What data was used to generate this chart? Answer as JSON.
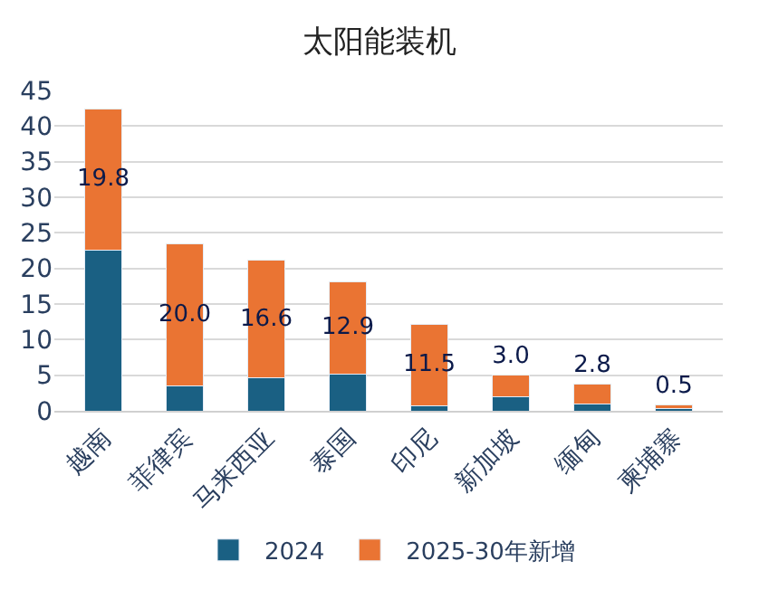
{
  "chart_data": {
    "type": "bar",
    "title": "太阳能装机",
    "stacked": true,
    "categories": [
      "越南",
      "菲律宾",
      "马来西亚",
      "泰国",
      "印尼",
      "新加坡",
      "缅甸",
      "柬埔寨"
    ],
    "series": [
      {
        "name": "2024",
        "color": "#1a6083",
        "values": [
          22.6,
          3.5,
          4.6,
          5.2,
          0.7,
          2.0,
          0.9,
          0.3
        ]
      },
      {
        "name": "2025-30年新增",
        "color": "#ea7433",
        "values": [
          19.8,
          20.0,
          16.6,
          12.9,
          11.5,
          3.0,
          2.8,
          0.5
        ],
        "value_labels": [
          "19.8",
          "20.0",
          "16.6",
          "12.9",
          "11.5",
          "3.0",
          "2.8",
          "0.5"
        ]
      }
    ],
    "ylim": [
      0,
      45
    ],
    "yticks": [
      0,
      5,
      10,
      15,
      20,
      25,
      30,
      35,
      40,
      45
    ],
    "grid": "y",
    "legend": "bottom"
  }
}
